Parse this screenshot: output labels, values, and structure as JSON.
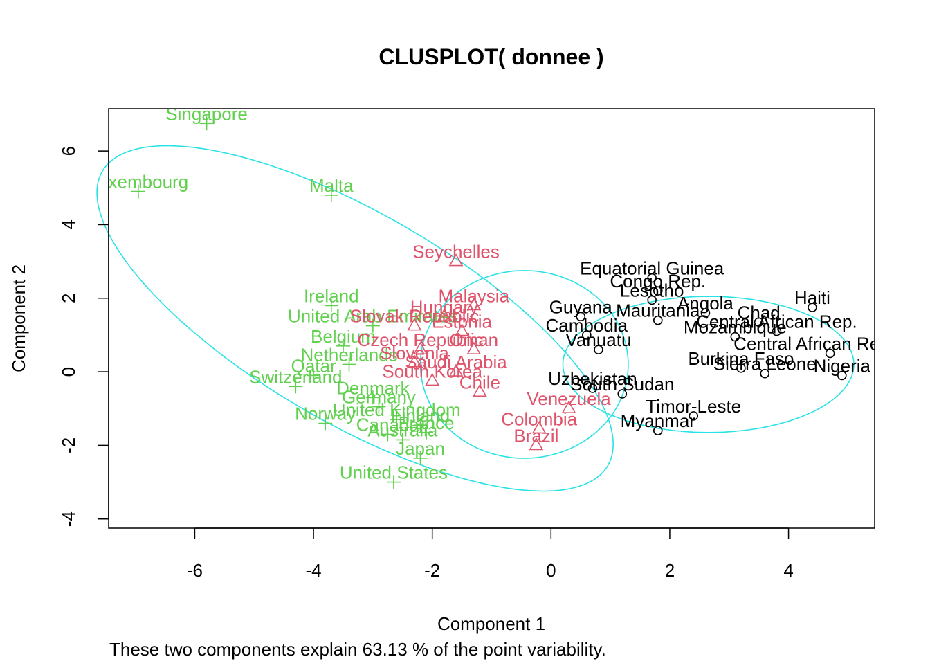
{
  "chart_data": {
    "type": "scatter",
    "title": "CLUSPLOT( donnee )",
    "xlabel": "Component 1",
    "ylabel": "Component 2",
    "subtitle": "These two components explain 63.13 % of the point variability.",
    "xlim": [
      -7.45,
      5.45
    ],
    "ylim": [
      -4.25,
      7.15
    ],
    "xticks": [
      -6,
      -4,
      -2,
      0,
      2,
      4
    ],
    "yticks": [
      -4,
      -2,
      0,
      2,
      4,
      6
    ],
    "grid": false,
    "legend": "none",
    "colors": {
      "cluster1": "#000000",
      "cluster2": "#DF536B",
      "cluster3": "#61D04F",
      "ellipse": "#28E2E5",
      "frame": "#000000"
    },
    "ellipses": [
      {
        "cluster": 3,
        "center": [
          -3.3,
          1.45
        ],
        "semi_axes": [
          5.95,
          2.35
        ],
        "angle_deg": -48
      },
      {
        "cluster": 2,
        "center": [
          -0.45,
          0.2
        ],
        "semi_axes": [
          1.75,
          2.55
        ],
        "angle_deg": 0
      },
      {
        "cluster": 1,
        "center": [
          2.65,
          0.2
        ],
        "semi_axes": [
          2.45,
          1.85
        ],
        "angle_deg": 0
      }
    ],
    "series": [
      {
        "cluster": 3,
        "marker": "plus",
        "points": [
          {
            "label": "Singapore",
            "x": -5.8,
            "y": 6.75
          },
          {
            "label": "Luxembourg",
            "x": -6.95,
            "y": 4.9
          },
          {
            "label": "Malta",
            "x": -3.7,
            "y": 4.8
          },
          {
            "label": "Ireland",
            "x": -3.7,
            "y": 1.8
          },
          {
            "label": "United Arab Emirates",
            "x": -3.0,
            "y": 1.25
          },
          {
            "label": "Belgium",
            "x": -3.5,
            "y": 0.7
          },
          {
            "label": "Netherlands",
            "x": -3.4,
            "y": 0.2
          },
          {
            "label": "Qatar",
            "x": -4.0,
            "y": -0.1
          },
          {
            "label": "Switzerland",
            "x": -4.3,
            "y": -0.4
          },
          {
            "label": "Denmark",
            "x": -3.0,
            "y": -0.7
          },
          {
            "label": "Germany",
            "x": -2.9,
            "y": -0.95
          },
          {
            "label": "Norway",
            "x": -3.8,
            "y": -1.4
          },
          {
            "label": "United Kingdom",
            "x": -2.6,
            "y": -1.3
          },
          {
            "label": "Finland",
            "x": -2.2,
            "y": -1.45
          },
          {
            "label": "Canada",
            "x": -2.75,
            "y": -1.7
          },
          {
            "label": "France",
            "x": -2.1,
            "y": -1.65
          },
          {
            "label": "Australia",
            "x": -2.5,
            "y": -1.85
          },
          {
            "label": "Japan",
            "x": -2.2,
            "y": -2.35
          },
          {
            "label": "United States",
            "x": -2.65,
            "y": -3.0
          }
        ]
      },
      {
        "cluster": 2,
        "marker": "triangle",
        "points": [
          {
            "label": "Seychelles",
            "x": -1.6,
            "y": 3.0
          },
          {
            "label": "Malaysia",
            "x": -1.3,
            "y": 1.8
          },
          {
            "label": "Hungary",
            "x": -1.8,
            "y": 1.5
          },
          {
            "label": "Slovak Republic",
            "x": -2.3,
            "y": 1.25
          },
          {
            "label": "Estonia",
            "x": -1.5,
            "y": 1.1
          },
          {
            "label": "Czech Republic",
            "x": -2.2,
            "y": 0.6
          },
          {
            "label": "Oman",
            "x": -1.3,
            "y": 0.6
          },
          {
            "label": "Slovenia",
            "x": -2.3,
            "y": 0.25
          },
          {
            "label": "Saudi Arabia",
            "x": -1.6,
            "y": 0.0
          },
          {
            "label": "South Korea",
            "x": -2.0,
            "y": -0.25
          },
          {
            "label": "Chile",
            "x": -1.2,
            "y": -0.55
          },
          {
            "label": "Venezuela",
            "x": 0.3,
            "y": -1.0
          },
          {
            "label": "Colombia",
            "x": -0.2,
            "y": -1.55
          },
          {
            "label": "Brazil",
            "x": -0.25,
            "y": -2.0
          }
        ]
      },
      {
        "cluster": 1,
        "marker": "circle",
        "points": [
          {
            "label": "Equatorial Guinea",
            "x": 1.7,
            "y": 2.55
          },
          {
            "label": "Congo Rep.",
            "x": 1.8,
            "y": 2.2
          },
          {
            "label": "Lesotho",
            "x": 1.7,
            "y": 1.95
          },
          {
            "label": "Angola",
            "x": 2.6,
            "y": 1.6
          },
          {
            "label": "Haiti",
            "x": 4.4,
            "y": 1.75
          },
          {
            "label": "Guyana",
            "x": 0.5,
            "y": 1.5
          },
          {
            "label": "Mauritania",
            "x": 1.8,
            "y": 1.4
          },
          {
            "label": "Chad",
            "x": 3.5,
            "y": 1.35
          },
          {
            "label": "Central African Rep.",
            "x": 3.8,
            "y": 1.1
          },
          {
            "label": "Mozambique",
            "x": 3.1,
            "y": 0.95
          },
          {
            "label": "Cambodia",
            "x": 0.6,
            "y": 1.0
          },
          {
            "label": "Vanuatu",
            "x": 0.8,
            "y": 0.6
          },
          {
            "label": "Central African Republic",
            "x": 4.7,
            "y": 0.5
          },
          {
            "label": "Burkina Faso",
            "x": 3.2,
            "y": 0.1
          },
          {
            "label": "Nigeria",
            "x": 4.9,
            "y": -0.1
          },
          {
            "label": "Sierra Leone",
            "x": 3.6,
            "y": -0.05
          },
          {
            "label": "Uzbekistan",
            "x": 0.7,
            "y": -0.45
          },
          {
            "label": "South Sudan",
            "x": 1.2,
            "y": -0.6
          },
          {
            "label": "Timor-Leste",
            "x": 2.4,
            "y": -1.2
          },
          {
            "label": "Myanmar",
            "x": 1.8,
            "y": -1.6
          }
        ]
      }
    ]
  }
}
